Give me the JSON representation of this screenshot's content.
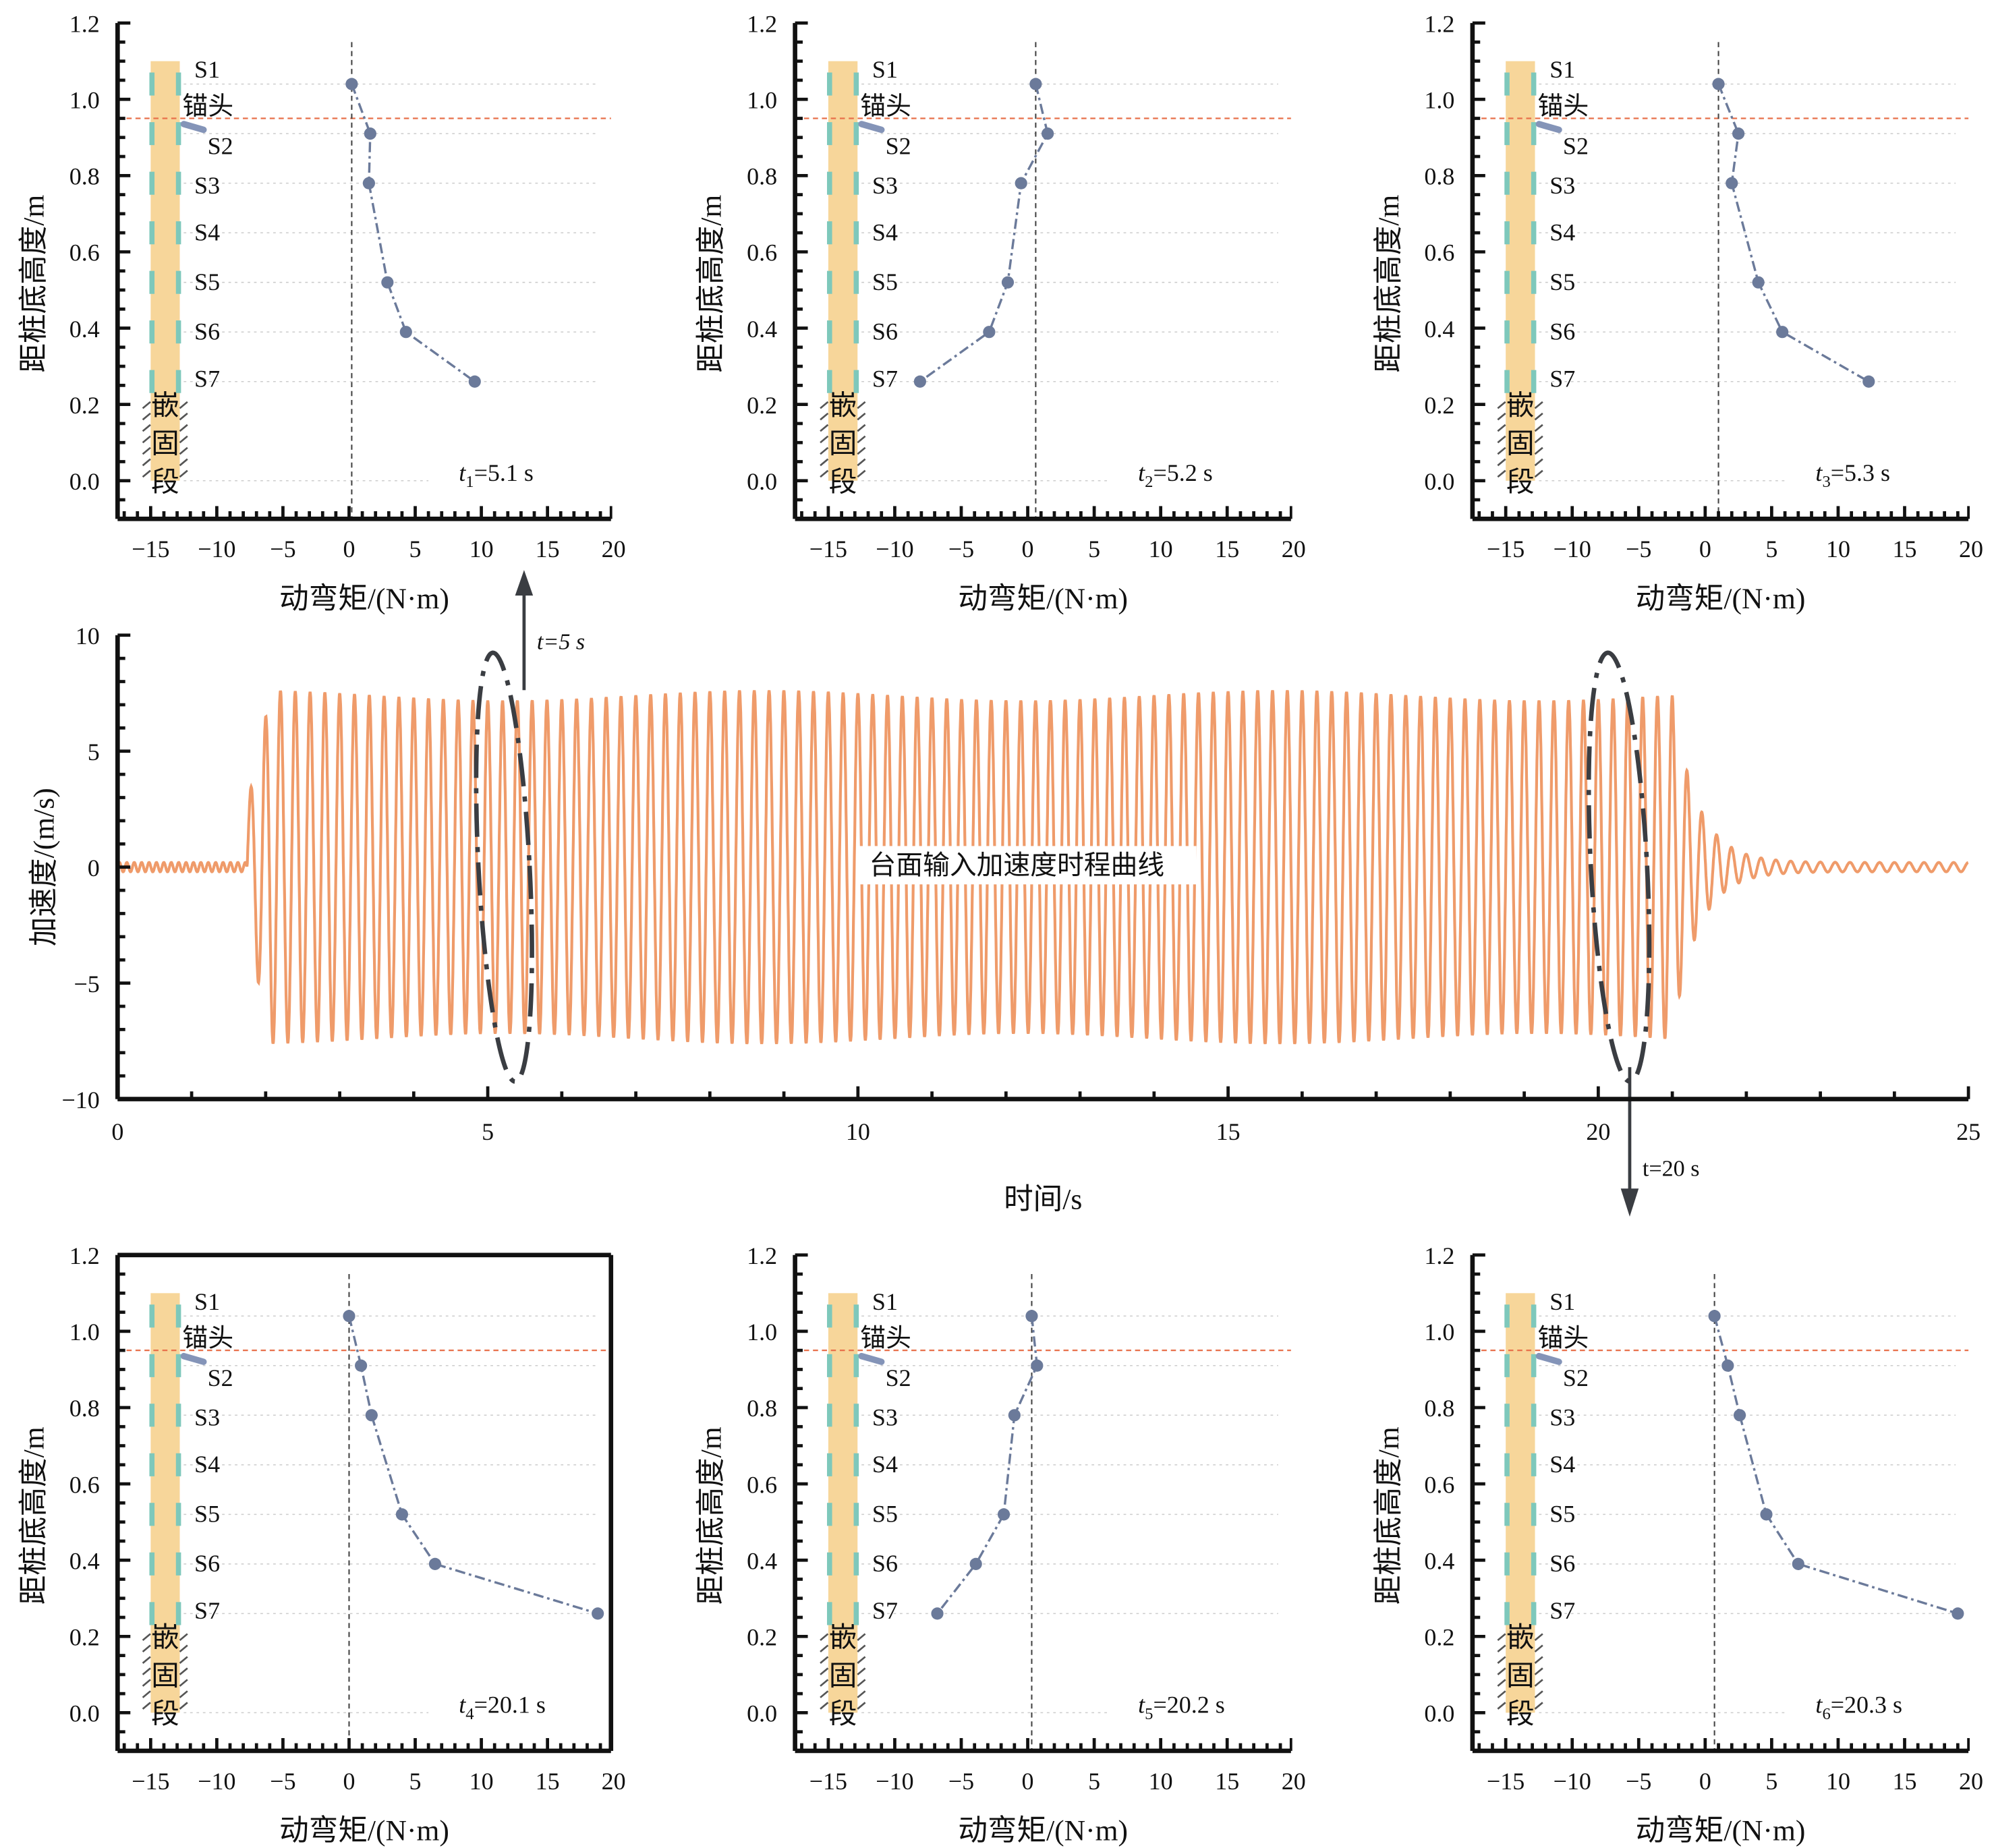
{
  "colors": {
    "signal": "#ef9b6a",
    "moment": "#6b7a9a",
    "anchor_line": "#e8704a",
    "pile": "#f7d69a",
    "gauge": "#7ec8bb",
    "annotation": "#3a3d42"
  },
  "chart_data": [
    {
      "type": "line",
      "panel": "time-history",
      "xlabel": "时间/s",
      "ylabel": "加速度/(m/s)",
      "xlim": [
        0,
        25
      ],
      "ylim": [
        -10,
        10
      ],
      "xticks": [
        0,
        5,
        10,
        15,
        20,
        25
      ],
      "yticks": [
        -10,
        -5,
        0,
        5,
        10
      ],
      "legend_text": "台面输入加速度时程曲线",
      "signal": {
        "frequency_hz": 5,
        "amplitude": 7.4,
        "start_s": 1.75,
        "end_s": 21.0,
        "pre_amplitude": 0.2
      },
      "annotations": [
        {
          "label": "t=5 s",
          "x": 5.25,
          "direction": "up"
        },
        {
          "label": "t=20 s",
          "x": 20.3,
          "direction": "down"
        }
      ],
      "grid": false
    },
    {
      "type": "line",
      "panel": "t1",
      "time_label": {
        "var": "t",
        "sub": "1",
        "value": "=5.1 s"
      },
      "x": [
        0.2,
        1.6,
        1.5,
        2.9,
        4.3,
        9.5
      ],
      "y": [
        1.04,
        0.91,
        0.78,
        0.52,
        0.39,
        0.26
      ]
    },
    {
      "type": "line",
      "panel": "t2",
      "time_label": {
        "var": "t",
        "sub": "2",
        "value": "=5.2 s"
      },
      "x": [
        0.6,
        1.5,
        -0.5,
        -1.5,
        -2.9,
        -8.1
      ],
      "y": [
        1.04,
        0.91,
        0.78,
        0.52,
        0.39,
        0.26
      ]
    },
    {
      "type": "line",
      "panel": "t3",
      "time_label": {
        "var": "t",
        "sub": "3",
        "value": "=5.3 s"
      },
      "x": [
        1.0,
        2.5,
        2.0,
        4.0,
        5.8,
        12.3
      ],
      "y": [
        1.04,
        0.91,
        0.78,
        0.52,
        0.39,
        0.26
      ]
    },
    {
      "type": "line",
      "panel": "t4",
      "time_label": {
        "var": "t",
        "sub": "4",
        "value": "=20.1 s"
      },
      "x": [
        0.0,
        0.9,
        1.7,
        4.0,
        6.5,
        18.8
      ],
      "y": [
        1.04,
        0.91,
        0.78,
        0.52,
        0.39,
        0.26
      ]
    },
    {
      "type": "line",
      "panel": "t5",
      "time_label": {
        "var": "t",
        "sub": "5",
        "value": "=20.2 s"
      },
      "x": [
        0.3,
        0.7,
        -1.0,
        -1.8,
        -3.9,
        -6.8
      ],
      "y": [
        1.04,
        0.91,
        0.78,
        0.52,
        0.39,
        0.26
      ]
    },
    {
      "type": "line",
      "panel": "t6",
      "time_label": {
        "var": "t",
        "sub": "6",
        "value": "=20.3 s"
      },
      "x": [
        0.7,
        1.7,
        2.6,
        4.6,
        7.0,
        19.0
      ],
      "y": [
        1.04,
        0.91,
        0.78,
        0.52,
        0.39,
        0.26
      ]
    }
  ],
  "profile_axes": {
    "xlabel": "动弯矩/(N·m)",
    "ylabel": "距桩底高度/m",
    "xlim": [
      -17.5,
      19.8
    ],
    "ylim": [
      -0.1,
      1.2
    ],
    "xticks": [
      -15,
      -10,
      -5,
      0,
      5,
      10,
      15,
      20
    ],
    "yticks": [
      0.0,
      0.2,
      0.4,
      0.6,
      0.8,
      1.0,
      1.2
    ],
    "anchor_height": 0.95,
    "anchor_label": "锚头",
    "embedded_label": [
      "嵌",
      "固",
      "段"
    ],
    "gauges": [
      {
        "label": "S1",
        "height": 1.04
      },
      {
        "label": "S2",
        "height": 0.91
      },
      {
        "label": "S3",
        "height": 0.78
      },
      {
        "label": "S4",
        "height": 0.65
      },
      {
        "label": "S5",
        "height": 0.52
      },
      {
        "label": "S6",
        "height": 0.39
      },
      {
        "label": "S7",
        "height": 0.26
      }
    ]
  }
}
